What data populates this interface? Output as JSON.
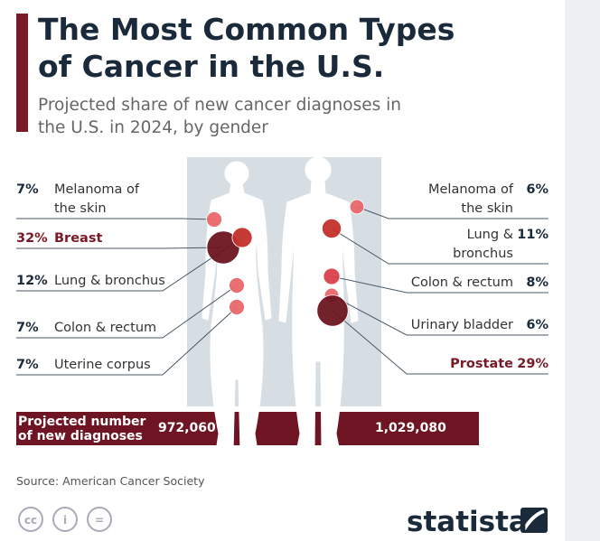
{
  "chart_data": {
    "type": "body-bubble",
    "title": "The Most Common Types of Cancer in the U.S.",
    "subtitle": "Projected share of new cancer diagnoses in the U.S. in 2024, by gender",
    "total_label": "Projected number of new diagnoses",
    "source": "Source: American Cancer Society",
    "brand": "statista",
    "highlight_color": "#7a1a26",
    "series": [
      {
        "categories": [
          "Melanoma of the skin",
          "Breast",
          "Lung & bronchus",
          "Colon & rectum",
          "Uterine corpus"
        ],
        "values": [
          7,
          32,
          12,
          7,
          7
        ],
        "value_labels": [
          "7%",
          "32%",
          "12%",
          "7%",
          "7%"
        ],
        "colors": [
          "#e8676c",
          "#6b1520",
          "#c3302b",
          "#e8676c",
          "#e8676c"
        ],
        "highlight": 1,
        "total": 972060,
        "total_value_label": "972,060"
      },
      {
        "categories": [
          "Melanoma of the skin",
          "Lung & bronchus",
          "Colon & rectum",
          "Urinary bladder",
          "Prostate"
        ],
        "values": [
          6,
          11,
          8,
          6,
          29
        ],
        "value_labels": [
          "6%",
          "11%",
          "8%",
          "6%",
          "29%"
        ],
        "colors": [
          "#e8676c",
          "#c3302b",
          "#d9414a",
          "#e8676c",
          "#6b1520"
        ],
        "highlight": 4,
        "total": 1029080,
        "total_value_label": "1,029,080"
      }
    ]
  }
}
